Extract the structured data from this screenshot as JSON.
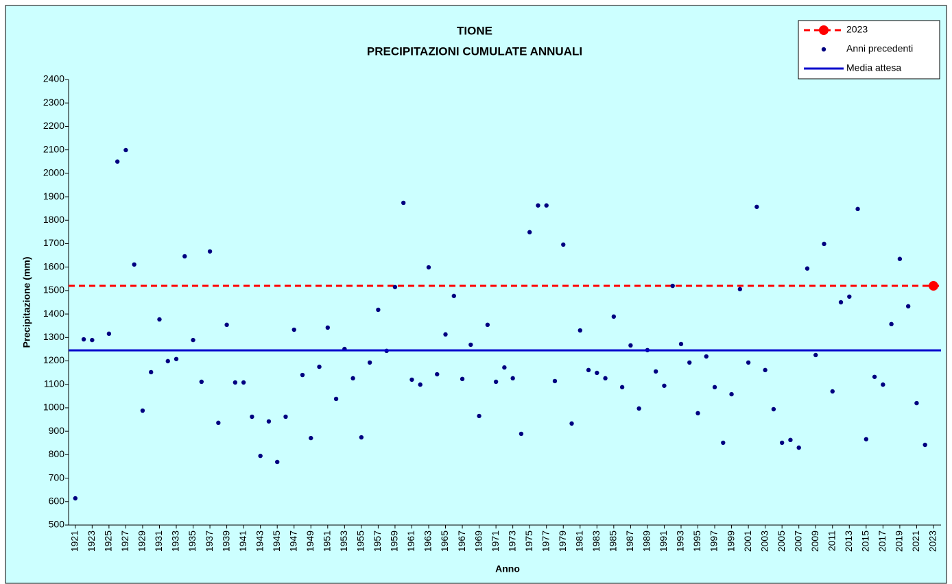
{
  "chart_data": {
    "type": "scatter",
    "title": "TIONE",
    "subtitle": "PRECIPITAZIONI CUMULATE ANNUALI",
    "x_label": "Anno",
    "y_label": "Precipitazione (mm)",
    "xlim": [
      1920.2,
      2023.9
    ],
    "xticks": [
      1921,
      1923,
      1925,
      1927,
      1929,
      1931,
      1933,
      1935,
      1937,
      1939,
      1941,
      1943,
      1945,
      1947,
      1949,
      1951,
      1953,
      1955,
      1957,
      1959,
      1961,
      1963,
      1965,
      1967,
      1969,
      1971,
      1973,
      1975,
      1977,
      1979,
      1981,
      1983,
      1985,
      1987,
      1989,
      1991,
      1993,
      1995,
      1997,
      1999,
      2001,
      2003,
      2005,
      2007,
      2009,
      2011,
      2013,
      2015,
      2017,
      2019,
      2021,
      2023
    ],
    "ylim": [
      500,
      2400
    ],
    "yticks": [
      500,
      600,
      700,
      800,
      900,
      1000,
      1100,
      1200,
      1300,
      1400,
      1500,
      1600,
      1700,
      1800,
      1900,
      2000,
      2100,
      2200,
      2300,
      2400
    ],
    "legend": "top-right",
    "series": [
      {
        "name": "2023",
        "style": "point-with-dashed-line",
        "color": "#ff0000",
        "x": [
          2023
        ],
        "values": [
          1520
        ]
      },
      {
        "name": "Anni precedenti",
        "style": "points",
        "color": "#000080",
        "x": [
          1921,
          1922,
          1923,
          1924,
          1925,
          1926,
          1927,
          1928,
          1929,
          1930,
          1931,
          1932,
          1933,
          1934,
          1935,
          1936,
          1937,
          1938,
          1939,
          1940,
          1941,
          1942,
          1943,
          1944,
          1945,
          1946,
          1947,
          1948,
          1949,
          1950,
          1951,
          1952,
          1953,
          1954,
          1955,
          1956,
          1957,
          1958,
          1959,
          1960,
          1961,
          1962,
          1963,
          1964,
          1965,
          1966,
          1967,
          1968,
          1969,
          1970,
          1971,
          1972,
          1973,
          1974,
          1975,
          1976,
          1977,
          1978,
          1979,
          1980,
          1981,
          1982,
          1983,
          1984,
          1985,
          1986,
          1987,
          1988,
          1989,
          1990,
          1991,
          1992,
          1993,
          1994,
          1995,
          1996,
          1997,
          1998,
          1999,
          2000,
          2001,
          2002,
          2003,
          2004,
          2005,
          2006,
          2007,
          2008,
          2009,
          2010,
          2011,
          2012,
          2013,
          2014,
          2015,
          2016,
          2017,
          2018,
          2019,
          2020,
          2021,
          2022
        ],
        "values": [
          614,
          1292,
          1289,
          null,
          1316,
          2050,
          2099,
          1611,
          988,
          1152,
          1377,
          1199,
          1208,
          1646,
          1289,
          1111,
          1667,
          936,
          1354,
          1108,
          1108,
          962,
          795,
          942,
          769,
          962,
          1333,
          1140,
          871,
          1175,
          1342,
          1038,
          1251,
          1126,
          874,
          1193,
          1418,
          1243,
          1515,
          1874,
          1120,
          1099,
          1599,
          1143,
          1313,
          1477,
          1123,
          1269,
          965,
          1354,
          1111,
          1172,
          1126,
          889,
          1749,
          1863,
          1863,
          1114,
          1696,
          933,
          1330,
          1161,
          1149,
          1126,
          1389,
          1088,
          1266,
          997,
          1246,
          1155,
          1094,
          1520,
          1272,
          1193,
          977,
          1219,
          1088,
          851,
          1058,
          1506,
          1193,
          1857,
          1161,
          994,
          851,
          863,
          830,
          1594,
          1225,
          1699,
          1070,
          1450,
          1474,
          1848,
          866,
          1132,
          1099,
          1357,
          1635,
          1433,
          1020,
          842
        ]
      },
      {
        "name": "Media attesa",
        "style": "hline",
        "color": "#0000cc",
        "values": [
          1245
        ]
      }
    ]
  }
}
